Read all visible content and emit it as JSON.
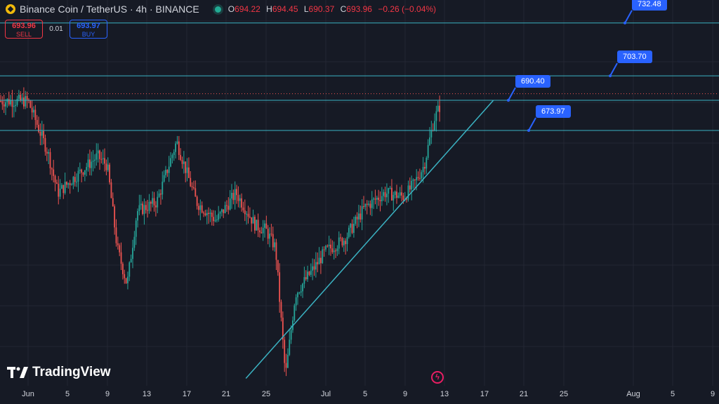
{
  "header": {
    "symbol_title": "Binance Coin / TetherUS · 4h · BINANCE",
    "open_label": "O",
    "open": "694.22",
    "high_label": "H",
    "high": "694.45",
    "low_label": "L",
    "low": "690.37",
    "close_label": "C",
    "close": "693.96",
    "change": "−0.26 (−0.04%)"
  },
  "trade": {
    "sell_price": "693.96",
    "sell_label": "SELL",
    "spread": "0.01",
    "buy_price": "693.97",
    "buy_label": "BUY"
  },
  "colors": {
    "background": "#161a25",
    "up": "#26a69a",
    "down": "#ef5350",
    "line": "#3bb3c3",
    "callout": "#2962ff"
  },
  "logo": {
    "text": "TradingView"
  },
  "chart_data": {
    "type": "candlestick",
    "x_tick_labels": [
      "Jun",
      "5",
      "9",
      "13",
      "17",
      "21",
      "25",
      "Jul",
      "5",
      "9",
      "13",
      "17",
      "21",
      "25",
      "Aug",
      "5",
      "9"
    ],
    "ylim": [
      535,
      745
    ],
    "levels": [
      {
        "label": "732.48",
        "value": 732.48
      },
      {
        "label": "703.70",
        "value": 703.7
      },
      {
        "label": "690.40",
        "value": 690.4
      },
      {
        "label": "673.97",
        "value": 673.97
      }
    ],
    "current_price": 693.96,
    "trendline": {
      "from_date": "2024-06-23",
      "from_value": 539,
      "to_date": "2024-07-18",
      "to_value": 690.4
    },
    "series_close_approx": [
      {
        "date": "2024-06-01",
        "value": 690
      },
      {
        "date": "2024-06-03",
        "value": 662
      },
      {
        "date": "2024-06-04",
        "value": 640
      },
      {
        "date": "2024-06-06",
        "value": 650
      },
      {
        "date": "2024-06-08",
        "value": 660
      },
      {
        "date": "2024-06-09",
        "value": 655
      },
      {
        "date": "2024-06-10",
        "value": 610
      },
      {
        "date": "2024-06-11",
        "value": 590
      },
      {
        "date": "2024-06-12",
        "value": 630
      },
      {
        "date": "2024-06-14",
        "value": 635
      },
      {
        "date": "2024-06-16",
        "value": 668
      },
      {
        "date": "2024-06-18",
        "value": 635
      },
      {
        "date": "2024-06-20",
        "value": 625
      },
      {
        "date": "2024-06-22",
        "value": 640
      },
      {
        "date": "2024-06-24",
        "value": 622
      },
      {
        "date": "2024-06-25",
        "value": 620
      },
      {
        "date": "2024-06-26",
        "value": 610
      },
      {
        "date": "2024-06-27",
        "value": 540
      },
      {
        "date": "2024-06-28",
        "value": 585
      },
      {
        "date": "2024-06-30",
        "value": 600
      },
      {
        "date": "2024-07-01",
        "value": 608
      },
      {
        "date": "2024-07-03",
        "value": 615
      },
      {
        "date": "2024-07-05",
        "value": 632
      },
      {
        "date": "2024-07-07",
        "value": 640
      },
      {
        "date": "2024-07-09",
        "value": 638
      },
      {
        "date": "2024-07-10",
        "value": 645
      },
      {
        "date": "2024-07-11",
        "value": 655
      },
      {
        "date": "2024-07-12",
        "value": 680
      },
      {
        "date": "2024-07-13",
        "value": 692
      }
    ]
  }
}
